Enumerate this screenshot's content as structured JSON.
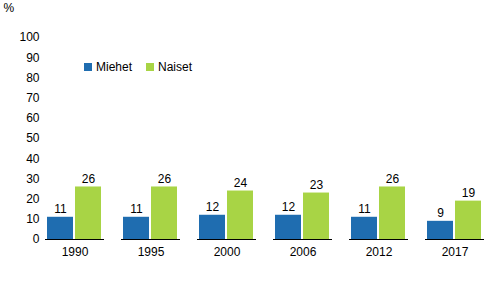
{
  "chart_data": {
    "type": "bar",
    "y_label": "%",
    "categories": [
      "1990",
      "1995",
      "2000",
      "2006",
      "2012",
      "2017"
    ],
    "series": [
      {
        "name": "Miehet",
        "color": "#1f6db0",
        "values": [
          11,
          11,
          12,
          12,
          11,
          9
        ]
      },
      {
        "name": "Naiset",
        "color": "#a8d445",
        "values": [
          26,
          26,
          24,
          23,
          26,
          19
        ]
      }
    ],
    "ylim": [
      0,
      100
    ],
    "yticks": [
      0,
      10,
      20,
      30,
      40,
      50,
      60,
      70,
      80,
      90,
      100
    ],
    "grid": false,
    "legend": "top-left",
    "data_labels": true
  }
}
